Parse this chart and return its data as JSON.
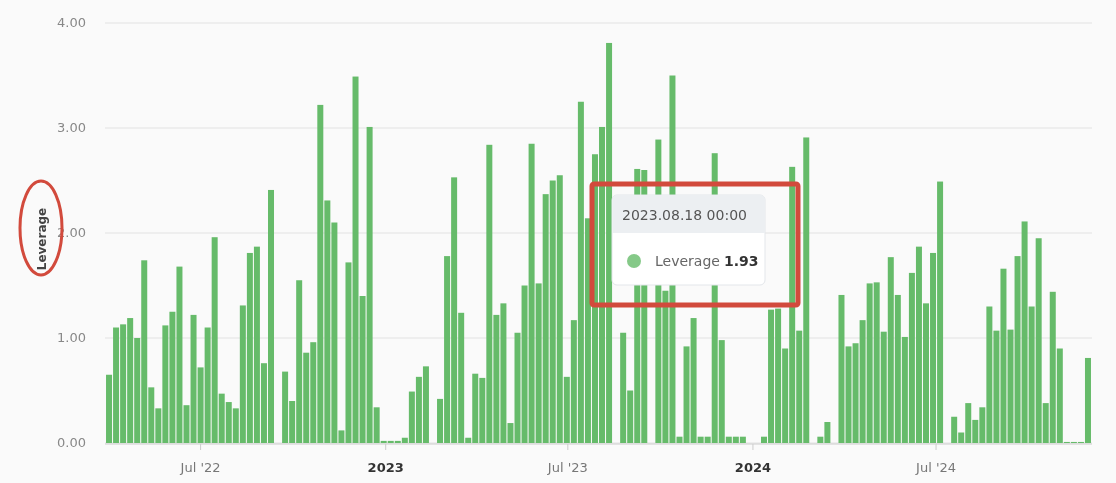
{
  "chart_data": {
    "type": "bar",
    "ylabel": "Leverage",
    "x": [
      "2022-04-01",
      "2022-04-08",
      "2022-04-15",
      "2022-04-22",
      "2022-04-29",
      "2022-05-06",
      "2022-05-13",
      "2022-05-20",
      "2022-05-27",
      "2022-06-03",
      "2022-06-10",
      "2022-06-17",
      "2022-06-24",
      "2022-07-01",
      "2022-07-08",
      "2022-07-15",
      "2022-07-22",
      "2022-07-29",
      "2022-08-05",
      "2022-08-12",
      "2022-08-19",
      "2022-08-26",
      "2022-09-02",
      "2022-09-09",
      "2022-09-16",
      "2022-09-23",
      "2022-09-30",
      "2022-10-07",
      "2022-10-14",
      "2022-10-21",
      "2022-10-28",
      "2022-11-04",
      "2022-11-11",
      "2022-11-18",
      "2022-11-25",
      "2022-12-02",
      "2022-12-09",
      "2022-12-16",
      "2022-12-23",
      "2022-12-30",
      "2023-01-06",
      "2023-01-13",
      "2023-01-20",
      "2023-01-27",
      "2023-02-03",
      "2023-02-10",
      "2023-02-17",
      "2023-02-24",
      "2023-03-03",
      "2023-03-10",
      "2023-03-17",
      "2023-03-24",
      "2023-03-31",
      "2023-04-07",
      "2023-04-14",
      "2023-04-21",
      "2023-04-28",
      "2023-05-05",
      "2023-05-12",
      "2023-05-19",
      "2023-05-26",
      "2023-06-02",
      "2023-06-09",
      "2023-06-16",
      "2023-06-23",
      "2023-06-30",
      "2023-07-07",
      "2023-07-14",
      "2023-07-21",
      "2023-07-28",
      "2023-08-04",
      "2023-08-11",
      "2023-08-18",
      "2023-08-25",
      "2023-09-01",
      "2023-09-08",
      "2023-09-15",
      "2023-09-22",
      "2023-09-29",
      "2023-10-06",
      "2023-10-13",
      "2023-10-20",
      "2023-10-27",
      "2023-11-03",
      "2023-11-10",
      "2023-11-17",
      "2023-11-24",
      "2023-12-01",
      "2023-12-08",
      "2023-12-15",
      "2023-12-22",
      "2023-12-29",
      "2024-01-05",
      "2024-01-12",
      "2024-01-19",
      "2024-01-26",
      "2024-02-02",
      "2024-02-09",
      "2024-02-16",
      "2024-02-23",
      "2024-03-01",
      "2024-03-08",
      "2024-03-15",
      "2024-03-22",
      "2024-03-29",
      "2024-04-05",
      "2024-04-12",
      "2024-04-19",
      "2024-04-26",
      "2024-05-03",
      "2024-05-10",
      "2024-05-17",
      "2024-05-24",
      "2024-05-31",
      "2024-06-07",
      "2024-06-14",
      "2024-06-21",
      "2024-06-28",
      "2024-07-05",
      "2024-07-12",
      "2024-07-19",
      "2024-07-26",
      "2024-08-02",
      "2024-08-09",
      "2024-08-16",
      "2024-08-23",
      "2024-08-30",
      "2024-09-06",
      "2024-09-13",
      "2024-09-20",
      "2024-09-27",
      "2024-10-04",
      "2024-10-11",
      "2024-10-18",
      "2024-10-25",
      "2024-11-01",
      "2024-11-08",
      "2024-11-15",
      "2024-11-22",
      "2024-11-29"
    ],
    "series": [
      {
        "name": "Leverage",
        "color": "#66bb6a",
        "values": [
          0.65,
          1.1,
          1.13,
          1.19,
          1.0,
          1.74,
          0.53,
          0.33,
          1.12,
          1.25,
          1.68,
          0.36,
          1.22,
          0.72,
          1.1,
          1.96,
          0.47,
          0.39,
          0.33,
          1.31,
          1.81,
          1.87,
          0.76,
          2.41,
          0,
          0.68,
          0.4,
          1.55,
          0.86,
          0.96,
          3.22,
          2.31,
          2.1,
          0.12,
          1.72,
          3.49,
          1.4,
          3.01,
          0.34,
          0.02,
          0.02,
          0.02,
          0.05,
          0.49,
          0.63,
          0.73,
          0,
          0.42,
          1.78,
          2.53,
          1.24,
          0.05,
          0.66,
          0.62,
          2.84,
          1.22,
          1.33,
          0.19,
          1.05,
          1.5,
          2.85,
          1.52,
          2.37,
          2.5,
          2.55,
          0.63,
          1.17,
          3.25,
          2.14,
          2.75,
          3.01,
          3.81,
          null,
          1.05,
          0.5,
          2.61,
          2.6,
          null,
          2.89,
          1.45,
          3.5,
          0.06,
          0.92,
          1.19,
          0.06,
          0.06,
          2.76,
          0.98,
          0.06,
          0.06,
          0.06,
          null,
          0,
          0.06,
          1.27,
          1.28,
          0.9,
          2.63,
          1.07,
          2.91,
          0,
          0.06,
          0.2,
          0,
          1.41,
          0.92,
          0.95,
          1.17,
          1.52,
          1.53,
          1.06,
          1.77,
          1.41,
          1.01,
          1.62,
          1.87,
          1.33,
          1.81,
          2.49,
          0,
          0.25,
          0.1,
          0.38,
          0.22,
          0.34,
          1.3,
          1.07,
          1.66,
          1.08,
          1.78,
          2.11,
          1.3,
          1.95,
          0.38,
          1.44,
          0.9,
          0.01,
          0.01,
          0.01,
          0.81
        ]
      }
    ],
    "xlim": [
      "2022-03-28",
      "2024-12-03"
    ],
    "xticks": [
      {
        "value": "2022-07-01",
        "label": "Jul '22"
      },
      {
        "value": "2023-01-01",
        "label": "2023"
      },
      {
        "value": "2023-07-01",
        "label": "Jul '23"
      },
      {
        "value": "2024-01-01",
        "label": "2024"
      },
      {
        "value": "2024-07-01",
        "label": "Jul '24"
      }
    ],
    "ylim": [
      0,
      4
    ],
    "yticks": [
      {
        "value": 0,
        "label": "0.00"
      },
      {
        "value": 1,
        "label": "1.00"
      },
      {
        "value": 2,
        "label": "2.00"
      },
      {
        "value": 3,
        "label": "3.00"
      },
      {
        "value": 4,
        "label": "4.00"
      }
    ],
    "grid": "y",
    "legend": "center",
    "annotations": [
      "2023.08.18 00:00",
      "1.93"
    ]
  }
}
